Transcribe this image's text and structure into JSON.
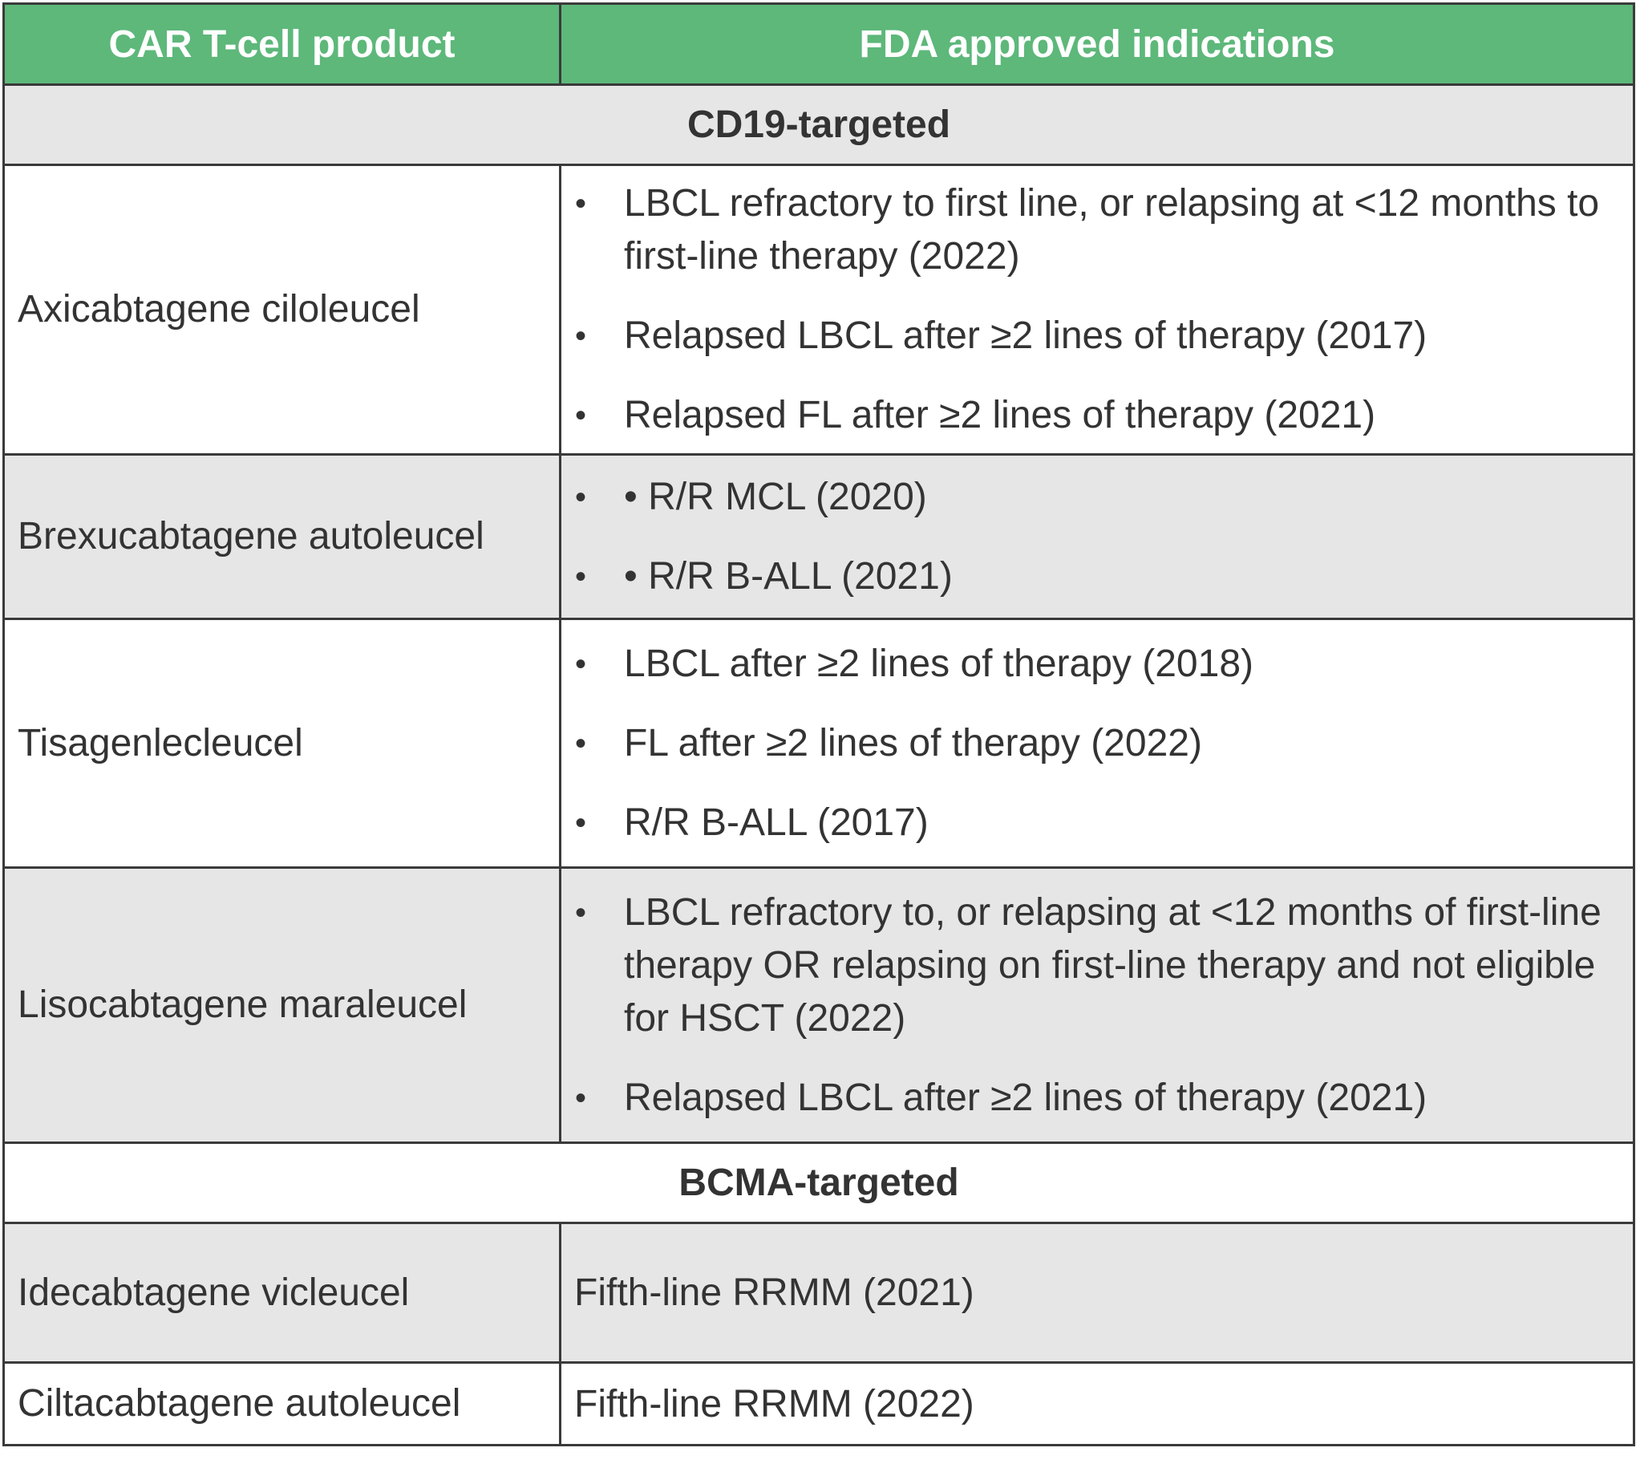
{
  "header": {
    "col1": "CAR T-cell product",
    "col2": "FDA approved indications"
  },
  "sections": [
    {
      "title": "CD19-targeted",
      "rows": [
        {
          "product": "Axicabtagene ciloleucel",
          "indications": [
            "LBCL refractory to first line, or relapsing at <12 months to first-line therapy (2022)",
            "Relapsed LBCL after ≥2 lines of therapy (2017)",
            "Relapsed FL after ≥2 lines of therapy (2021)"
          ]
        },
        {
          "product": "Brexucabtagene autoleucel",
          "indications": [
            "• R/R MCL (2020)",
            "• R/R B-ALL (2021)"
          ]
        },
        {
          "product": "Tisagenlecleucel",
          "indications": [
            "LBCL after ≥2 lines of therapy (2018)",
            "FL after ≥2 lines of therapy (2022)",
            "R/R B-ALL (2017)"
          ]
        },
        {
          "product": "Lisocabtagene maraleucel",
          "indications": [
            "LBCL refractory to, or relapsing at <12 months of first-line therapy OR relapsing on first-line therapy and not eligible for HSCT (2022)",
            "Relapsed LBCL after ≥2 lines of therapy (2021)"
          ]
        }
      ]
    },
    {
      "title": "BCMA-targeted",
      "rows": [
        {
          "product": "Idecabtagene vicleucel",
          "indication": "Fifth-line RRMM (2021)"
        },
        {
          "product": "Ciltacabtagene autoleucel",
          "indication": "Fifth-line RRMM (2022)"
        }
      ]
    }
  ],
  "bullet_glyph": "•"
}
